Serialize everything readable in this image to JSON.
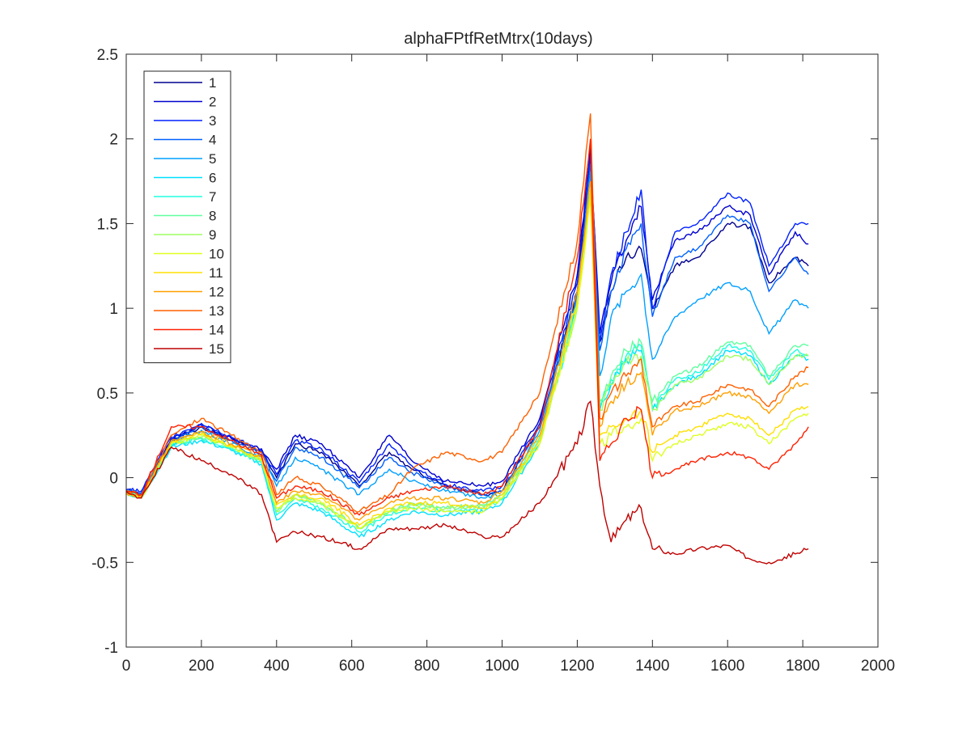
{
  "chart_data": {
    "type": "line",
    "title": "alphaFPtfRetMtrx(10days)",
    "xlabel": "",
    "ylabel": "",
    "xlim": [
      0,
      2000
    ],
    "ylim": [
      -1,
      2.5
    ],
    "xticks": [
      0,
      200,
      400,
      600,
      800,
      1000,
      1200,
      1400,
      1600,
      1800,
      2000
    ],
    "yticks": [
      -1,
      -0.5,
      0,
      0.5,
      1,
      1.5,
      2,
      2.5
    ],
    "xtick_labels": [
      "0",
      "200",
      "400",
      "600",
      "800",
      "1000",
      "1200",
      "1400",
      "1600",
      "1800",
      "2000"
    ],
    "ytick_labels": [
      "-1",
      "-0.5",
      "0",
      "0.5",
      "1",
      "1.5",
      "2",
      "2.5"
    ],
    "grid": false,
    "legend_position": "top-left",
    "x": [
      0,
      40,
      120,
      200,
      280,
      360,
      400,
      450,
      520,
      620,
      700,
      760,
      850,
      950,
      1000,
      1100,
      1200,
      1235,
      1260,
      1290,
      1330,
      1370,
      1400,
      1460,
      1520,
      1600,
      1660,
      1710,
      1780,
      1815
    ],
    "series": [
      {
        "name": "1",
        "color": "#00008f",
        "values": [
          -0.08,
          -0.1,
          0.22,
          0.3,
          0.22,
          0.15,
          0,
          0.2,
          0.15,
          -0.05,
          0.15,
          0.05,
          -0.05,
          -0.1,
          -0.08,
          0.3,
          1.1,
          1.9,
          0.8,
          1.1,
          1.3,
          1.35,
          1.0,
          1.25,
          1.3,
          1.5,
          1.48,
          1.15,
          1.3,
          1.25
        ]
      },
      {
        "name": "2",
        "color": "#0000cf",
        "values": [
          -0.07,
          -0.09,
          0.23,
          0.31,
          0.23,
          0.17,
          0.05,
          0.25,
          0.2,
          0.0,
          0.25,
          0.1,
          -0.02,
          -0.05,
          -0.02,
          0.35,
          1.2,
          1.95,
          0.85,
          1.15,
          1.4,
          1.6,
          1.05,
          1.4,
          1.45,
          1.6,
          1.55,
          1.2,
          1.45,
          1.38
        ]
      },
      {
        "name": "3",
        "color": "#0020ff",
        "values": [
          -0.07,
          -0.08,
          0.24,
          0.32,
          0.24,
          0.16,
          0.02,
          0.22,
          0.17,
          -0.03,
          0.2,
          0.07,
          -0.04,
          -0.08,
          -0.05,
          0.32,
          1.15,
          1.9,
          0.8,
          1.2,
          1.45,
          1.7,
          1.0,
          1.45,
          1.5,
          1.68,
          1.62,
          1.25,
          1.5,
          1.5
        ]
      },
      {
        "name": "4",
        "color": "#0060ff",
        "values": [
          -0.08,
          -0.09,
          0.22,
          0.3,
          0.22,
          0.14,
          -0.02,
          0.18,
          0.12,
          -0.06,
          0.12,
          0.03,
          -0.06,
          -0.1,
          -0.08,
          0.3,
          1.1,
          1.85,
          0.75,
          1.1,
          1.35,
          1.5,
          0.95,
          1.3,
          1.35,
          1.55,
          1.5,
          1.1,
          1.3,
          1.2
        ]
      },
      {
        "name": "5",
        "color": "#00a0ff",
        "values": [
          -0.08,
          -0.1,
          0.2,
          0.28,
          0.2,
          0.12,
          -0.05,
          0.12,
          0.05,
          -0.1,
          0.05,
          -0.02,
          -0.08,
          -0.12,
          -0.1,
          0.28,
          1.05,
          1.8,
          0.6,
          0.95,
          1.1,
          1.2,
          0.7,
          0.95,
          1.05,
          1.15,
          1.1,
          0.85,
          1.05,
          1.0
        ]
      },
      {
        "name": "6",
        "color": "#00e0ff",
        "values": [
          -0.09,
          -0.12,
          0.18,
          0.22,
          0.16,
          0.08,
          -0.25,
          -0.15,
          -0.2,
          -0.35,
          -0.25,
          -0.2,
          -0.22,
          -0.2,
          -0.15,
          0.2,
          1.0,
          1.7,
          0.4,
          0.55,
          0.7,
          0.75,
          0.4,
          0.55,
          0.6,
          0.75,
          0.72,
          0.55,
          0.72,
          0.7
        ]
      },
      {
        "name": "7",
        "color": "#20ffdf",
        "values": [
          -0.09,
          -0.12,
          0.19,
          0.23,
          0.17,
          0.09,
          -0.22,
          -0.12,
          -0.18,
          -0.32,
          -0.22,
          -0.18,
          -0.2,
          -0.18,
          -0.13,
          0.22,
          1.0,
          1.7,
          0.42,
          0.58,
          0.72,
          0.78,
          0.42,
          0.58,
          0.62,
          0.78,
          0.75,
          0.58,
          0.75,
          0.72
        ]
      },
      {
        "name": "8",
        "color": "#60ff9f",
        "values": [
          -0.09,
          -0.12,
          0.2,
          0.24,
          0.18,
          0.1,
          -0.2,
          -0.1,
          -0.15,
          -0.3,
          -0.2,
          -0.15,
          -0.18,
          -0.16,
          -0.1,
          0.24,
          1.02,
          1.7,
          0.45,
          0.6,
          0.75,
          0.8,
          0.45,
          0.6,
          0.65,
          0.8,
          0.78,
          0.6,
          0.78,
          0.78
        ]
      },
      {
        "name": "9",
        "color": "#9fff60",
        "values": [
          -0.09,
          -0.12,
          0.2,
          0.24,
          0.18,
          0.1,
          -0.2,
          -0.1,
          -0.16,
          -0.3,
          -0.2,
          -0.16,
          -0.18,
          -0.17,
          -0.12,
          0.22,
          1.0,
          1.65,
          0.4,
          0.55,
          0.68,
          0.72,
          0.4,
          0.55,
          0.58,
          0.72,
          0.7,
          0.55,
          0.72,
          0.72
        ]
      },
      {
        "name": "10",
        "color": "#dfff20",
        "values": [
          -0.09,
          -0.12,
          0.2,
          0.25,
          0.18,
          0.1,
          -0.18,
          -0.12,
          -0.15,
          -0.3,
          -0.2,
          -0.18,
          -0.2,
          -0.2,
          -0.12,
          0.2,
          1.0,
          1.65,
          0.2,
          0.25,
          0.3,
          0.35,
          0.1,
          0.2,
          0.25,
          0.32,
          0.3,
          0.2,
          0.35,
          0.38
        ]
      },
      {
        "name": "11",
        "color": "#ffdf00",
        "values": [
          -0.09,
          -0.12,
          0.21,
          0.26,
          0.19,
          0.11,
          -0.16,
          -0.1,
          -0.12,
          -0.28,
          -0.18,
          -0.15,
          -0.15,
          -0.18,
          -0.1,
          0.22,
          1.05,
          1.7,
          0.25,
          0.3,
          0.35,
          0.4,
          0.15,
          0.25,
          0.3,
          0.38,
          0.35,
          0.25,
          0.4,
          0.42
        ]
      },
      {
        "name": "12",
        "color": "#ff9f00",
        "values": [
          -0.09,
          -0.11,
          0.22,
          0.27,
          0.2,
          0.12,
          -0.15,
          -0.08,
          -0.1,
          -0.25,
          -0.15,
          -0.12,
          -0.12,
          -0.15,
          -0.08,
          0.25,
          1.1,
          1.75,
          0.3,
          0.45,
          0.55,
          0.62,
          0.25,
          0.4,
          0.42,
          0.5,
          0.48,
          0.38,
          0.55,
          0.55
        ]
      },
      {
        "name": "13",
        "color": "#ff6000",
        "values": [
          -0.08,
          -0.1,
          0.25,
          0.35,
          0.25,
          0.15,
          -0.1,
          0.0,
          -0.05,
          -0.2,
          -0.1,
          0.05,
          0.15,
          0.1,
          0.15,
          0.5,
          1.4,
          2.15,
          0.35,
          0.5,
          0.6,
          0.7,
          0.3,
          0.42,
          0.45,
          0.55,
          0.52,
          0.42,
          0.6,
          0.65
        ]
      },
      {
        "name": "14",
        "color": "#ff2000",
        "values": [
          -0.08,
          -0.1,
          0.3,
          0.3,
          0.22,
          0.13,
          -0.12,
          -0.05,
          -0.08,
          -0.22,
          -0.12,
          -0.08,
          -0.05,
          -0.1,
          -0.05,
          0.3,
          1.3,
          2.0,
          0.1,
          0.2,
          0.35,
          0.4,
          0.0,
          0.05,
          0.1,
          0.15,
          0.12,
          0.05,
          0.2,
          0.3
        ]
      },
      {
        "name": "15",
        "color": "#bf0000",
        "values": [
          -0.08,
          -0.12,
          0.18,
          0.1,
          0.02,
          -0.1,
          -0.38,
          -0.32,
          -0.35,
          -0.42,
          -0.3,
          -0.3,
          -0.28,
          -0.35,
          -0.35,
          -0.15,
          0.2,
          0.45,
          -0.05,
          -0.38,
          -0.25,
          -0.18,
          -0.42,
          -0.45,
          -0.42,
          -0.4,
          -0.48,
          -0.5,
          -0.45,
          -0.42
        ]
      }
    ]
  }
}
